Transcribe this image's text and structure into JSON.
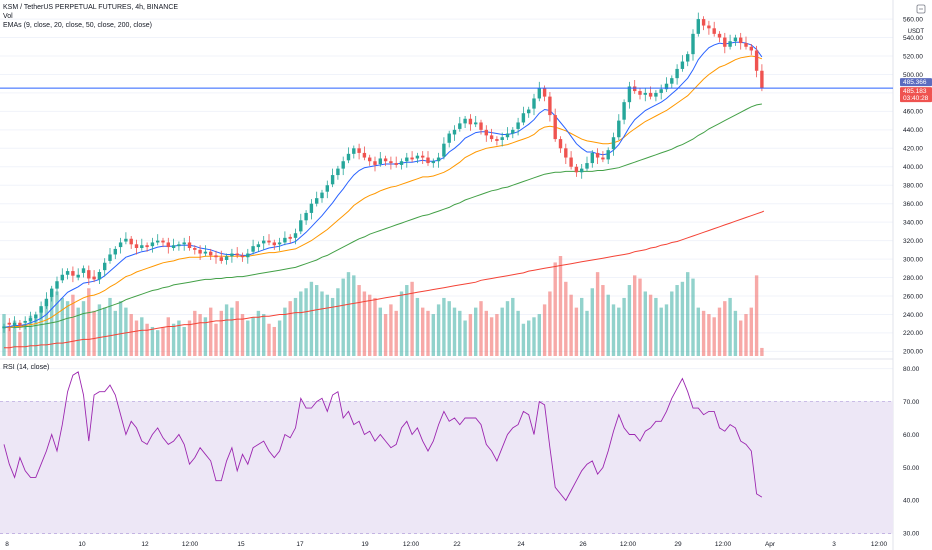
{
  "header": {
    "title": "KSM / TetherUS PERPETUAL FUTURES, 4h, BINANCE",
    "volume_label": "Vol",
    "ema_label": "EMAs (9, close, 20, close, 50, close, 200, close)",
    "rsi_label": "RSI (14, close)",
    "currency": "USDT"
  },
  "colors": {
    "up": "#26a69a",
    "down": "#ef5350",
    "ema9": "#2962ff",
    "ema20": "#ff9800",
    "ema50": "#43a047",
    "ema200": "#f44336",
    "hline": "#2962ff",
    "rsi_line": "#9c27b0",
    "rsi_band": "#ede7f6",
    "price_tag_blue": "#5b6bbf",
    "price_tag_red": "#ef5350"
  },
  "chart_data": [
    {
      "type": "candlestick",
      "title": "KSM / TetherUS PERPETUAL FUTURES, 4h, BINANCE",
      "y_ticks": [
        200,
        220,
        240,
        260,
        280,
        300,
        320,
        340,
        360,
        380,
        400,
        420,
        440,
        460,
        480,
        500,
        520,
        540,
        560
      ],
      "y_tick_labels": [
        "200.00",
        "220.00",
        "240.00",
        "260.00",
        "280.00",
        "300.00",
        "320.00",
        "340.00",
        "360.00",
        "380.00",
        "400.00",
        "420.00",
        "440.00",
        "460.00",
        "480.00",
        "500.00",
        "520.00",
        "540.00",
        "560.00"
      ],
      "x_labels": [
        "8",
        "10",
        "12",
        "12:00",
        "15",
        "17",
        "19",
        "12:00",
        "22",
        "24",
        "26",
        "12:00",
        "29",
        "12:00",
        "Apr",
        "3",
        "12:00"
      ],
      "ylim": [
        195,
        572
      ],
      "horizontal_line": 485.18,
      "price_tags": [
        "485.366",
        "485.183",
        "03:40:28"
      ],
      "close": [
        227,
        229,
        231,
        228,
        233,
        236,
        240,
        249,
        257,
        268,
        276,
        283,
        287,
        282,
        283,
        290,
        279,
        278,
        286,
        296,
        305,
        311,
        318,
        322,
        316,
        312,
        315,
        313,
        318,
        320,
        318,
        313,
        315,
        316,
        318,
        312,
        310,
        306,
        308,
        304,
        302,
        298,
        303,
        306,
        304,
        302,
        306,
        314,
        316,
        320,
        318,
        315,
        318,
        323,
        322,
        328,
        342,
        350,
        360,
        366,
        372,
        380,
        391,
        398,
        406,
        414,
        420,
        415,
        410,
        406,
        402,
        409,
        406,
        404,
        402,
        406,
        410,
        408,
        412,
        410,
        404,
        406,
        410,
        425,
        436,
        440,
        447,
        452,
        446,
        448,
        440,
        434,
        430,
        428,
        432,
        436,
        440,
        448,
        458,
        462,
        474,
        485,
        476,
        456,
        430,
        420,
        410,
        400,
        394,
        398,
        404,
        415,
        410,
        408,
        418,
        432,
        450,
        470,
        487,
        482,
        478,
        480,
        476,
        480,
        484,
        490,
        496,
        506,
        514,
        522,
        544,
        560,
        553,
        550,
        544,
        540,
        530,
        536,
        540,
        534,
        530,
        526,
        504,
        485
      ],
      "open_delta": [
        -2,
        2,
        -3,
        3,
        -2,
        -3,
        -4,
        -7,
        -8,
        -9,
        -8,
        -6,
        -4,
        5,
        -3,
        -5,
        9,
        3,
        -8,
        -8,
        -7,
        -6,
        -5,
        -3,
        6,
        4,
        -3,
        2,
        -4,
        -2,
        2,
        5,
        -3,
        -2,
        -2,
        6,
        2,
        4,
        -2,
        4,
        2,
        4,
        -4,
        -3,
        2,
        2,
        -4,
        -6,
        -3,
        -3,
        2,
        3,
        -2,
        -5,
        2,
        -5,
        -12,
        -8,
        -10,
        -6,
        -6,
        -7,
        -10,
        -7,
        -8,
        -7,
        -6,
        5,
        5,
        4,
        4,
        -6,
        3,
        2,
        2,
        -4,
        -4,
        2,
        -3,
        2,
        6,
        -2,
        -4,
        -14,
        -10,
        -5,
        -6,
        -5,
        6,
        -2,
        8,
        6,
        4,
        2,
        -3,
        -4,
        -4,
        -7,
        -10,
        -4,
        -11,
        -11,
        9,
        20,
        26,
        10,
        10,
        10,
        6,
        -4,
        -6,
        -11,
        5,
        2,
        -10,
        -13,
        -18,
        -19,
        -17,
        5,
        4,
        -2,
        4,
        -4,
        -4,
        -6,
        -6,
        -10,
        -8,
        -8,
        -22,
        -16,
        7,
        3,
        6,
        4,
        10,
        -6,
        -4,
        6,
        4,
        4,
        22,
        19
      ],
      "volume": [
        26,
        18,
        22,
        15,
        20,
        25,
        24,
        30,
        34,
        38,
        40,
        36,
        34,
        38,
        30,
        34,
        42,
        28,
        32,
        30,
        36,
        28,
        34,
        30,
        26,
        22,
        24,
        20,
        18,
        16,
        18,
        24,
        20,
        22,
        18,
        22,
        28,
        26,
        24,
        30,
        20,
        28,
        32,
        30,
        34,
        26,
        22,
        24,
        28,
        26,
        20,
        18,
        22,
        30,
        34,
        36,
        40,
        42,
        46,
        44,
        40,
        38,
        36,
        42,
        48,
        52,
        50,
        44,
        40,
        38,
        36,
        30,
        26,
        32,
        28,
        40,
        44,
        46,
        36,
        30,
        28,
        26,
        32,
        36,
        34,
        30,
        28,
        22,
        26,
        30,
        34,
        28,
        24,
        26,
        30,
        34,
        36,
        28,
        20,
        22,
        24,
        26,
        32,
        40,
        58,
        62,
        46,
        38,
        30,
        36,
        28,
        42,
        52,
        44,
        38,
        32,
        30,
        36,
        44,
        50,
        48,
        40,
        38,
        36,
        30,
        32,
        40,
        44,
        46,
        52,
        48,
        30,
        28,
        26,
        24,
        30,
        34,
        36,
        28,
        22,
        26,
        30,
        50,
        5
      ],
      "ema9": [
        226,
        227,
        228,
        228,
        229,
        231,
        233,
        236,
        240,
        246,
        252,
        258,
        264,
        267,
        270,
        274,
        275,
        276,
        278,
        282,
        287,
        292,
        297,
        302,
        304,
        306,
        308,
        309,
        311,
        313,
        314,
        314,
        314,
        315,
        315,
        315,
        314,
        312,
        311,
        310,
        308,
        306,
        305,
        305,
        305,
        304,
        304,
        306,
        308,
        310,
        312,
        313,
        314,
        316,
        317,
        319,
        324,
        329,
        335,
        341,
        347,
        354,
        361,
        369,
        376,
        384,
        391,
        396,
        399,
        400,
        401,
        402,
        403,
        403,
        403,
        404,
        405,
        405,
        406,
        407,
        406,
        406,
        407,
        410,
        416,
        420,
        425,
        431,
        434,
        437,
        438,
        438,
        437,
        436,
        435,
        435,
        436,
        438,
        442,
        446,
        451,
        458,
        462,
        461,
        455,
        448,
        441,
        433,
        425,
        420,
        416,
        416,
        414,
        413,
        414,
        418,
        424,
        433,
        443,
        451,
        456,
        461,
        464,
        467,
        470,
        474,
        479,
        484,
        490,
        496,
        505,
        516,
        523,
        529,
        532,
        534,
        533,
        534,
        535,
        535,
        534,
        532,
        527,
        519
      ],
      "ema20": [
        226,
        226,
        227,
        227,
        228,
        229,
        230,
        232,
        234,
        237,
        241,
        245,
        249,
        252,
        255,
        258,
        260,
        261,
        263,
        266,
        270,
        273,
        277,
        281,
        283,
        286,
        288,
        290,
        292,
        294,
        296,
        297,
        298,
        300,
        301,
        302,
        302,
        302,
        303,
        303,
        303,
        303,
        303,
        303,
        303,
        303,
        303,
        304,
        305,
        306,
        307,
        307,
        308,
        309,
        310,
        311,
        314,
        317,
        320,
        324,
        328,
        332,
        337,
        342,
        347,
        352,
        358,
        362,
        366,
        369,
        371,
        374,
        376,
        378,
        379,
        381,
        383,
        385,
        387,
        389,
        389,
        390,
        392,
        394,
        397,
        401,
        405,
        410,
        413,
        416,
        418,
        420,
        421,
        422,
        423,
        424,
        426,
        428,
        430,
        432,
        435,
        440,
        443,
        444,
        443,
        441,
        439,
        436,
        433,
        430,
        428,
        427,
        426,
        425,
        425,
        426,
        428,
        432,
        437,
        441,
        445,
        449,
        452,
        455,
        458,
        461,
        465,
        469,
        473,
        477,
        483,
        489,
        495,
        500,
        504,
        508,
        510,
        513,
        516,
        518,
        519,
        520,
        519,
        517
      ],
      "ema50": [
        226,
        226,
        226,
        226,
        227,
        227,
        228,
        229,
        230,
        231,
        232,
        234,
        236,
        237,
        239,
        241,
        242,
        243,
        245,
        247,
        249,
        251,
        253,
        256,
        258,
        260,
        262,
        264,
        266,
        267,
        269,
        270,
        272,
        273,
        274,
        275,
        276,
        277,
        278,
        278,
        279,
        279,
        280,
        280,
        281,
        281,
        282,
        283,
        284,
        285,
        286,
        287,
        288,
        289,
        290,
        291,
        293,
        295,
        297,
        299,
        302,
        304,
        307,
        310,
        313,
        316,
        319,
        322,
        324,
        327,
        329,
        331,
        333,
        335,
        337,
        339,
        341,
        343,
        345,
        347,
        348,
        350,
        352,
        354,
        356,
        359,
        361,
        364,
        366,
        368,
        370,
        372,
        374,
        375,
        377,
        378,
        380,
        382,
        384,
        386,
        388,
        390,
        392,
        393,
        394,
        394,
        395,
        395,
        395,
        395,
        395,
        395,
        396,
        396,
        397,
        398,
        399,
        401,
        403,
        405,
        407,
        409,
        411,
        413,
        415,
        417,
        419,
        422,
        424,
        427,
        430,
        434,
        437,
        441,
        444,
        447,
        450,
        453,
        456,
        459,
        462,
        465,
        467,
        468
      ],
      "ema200": [
        204,
        204,
        205,
        205,
        205,
        206,
        206,
        207,
        207,
        208,
        209,
        209,
        210,
        211,
        212,
        213,
        213,
        214,
        215,
        216,
        217,
        218,
        219,
        220,
        221,
        222,
        223,
        223,
        224,
        225,
        226,
        227,
        227,
        228,
        229,
        229,
        230,
        231,
        231,
        232,
        233,
        233,
        234,
        234,
        235,
        235,
        236,
        237,
        237,
        238,
        238,
        239,
        240,
        240,
        241,
        242,
        242,
        243,
        244,
        245,
        246,
        247,
        248,
        249,
        250,
        251,
        252,
        253,
        254,
        255,
        256,
        257,
        258,
        259,
        260,
        261,
        262,
        263,
        264,
        265,
        266,
        267,
        268,
        269,
        270,
        271,
        272,
        273,
        274,
        275,
        277,
        278,
        279,
        280,
        281,
        282,
        283,
        284,
        285,
        287,
        288,
        289,
        290,
        291,
        292,
        293,
        294,
        295,
        296,
        297,
        298,
        299,
        300,
        301,
        302,
        303,
        304,
        305,
        306,
        308,
        309,
        310,
        312,
        313,
        315,
        316,
        318,
        319,
        321,
        323,
        325,
        327,
        329,
        331,
        333,
        335,
        337,
        339,
        341,
        343,
        345,
        347,
        349,
        351
      ]
    },
    {
      "type": "line",
      "title": "RSI (14, close)",
      "y_ticks": [
        30,
        40,
        50,
        60,
        70,
        80
      ],
      "y_tick_labels": [
        "30.00",
        "40.00",
        "50.00",
        "60.00",
        "70.00",
        "80.00"
      ],
      "ylim": [
        28,
        82
      ],
      "band": [
        30,
        70
      ],
      "values": [
        57,
        51,
        47,
        53,
        49,
        47,
        47,
        51,
        55,
        60,
        55,
        63,
        73,
        78,
        79,
        72,
        58,
        72,
        73,
        73,
        75,
        72,
        66,
        60,
        64,
        62,
        58,
        57,
        60,
        62,
        59,
        57,
        58,
        60,
        57,
        51,
        53,
        56,
        54,
        52,
        46,
        46,
        52,
        56,
        49,
        54,
        51,
        56,
        57,
        58,
        55,
        53,
        55,
        60,
        59,
        62,
        71,
        68,
        68,
        70,
        71,
        67,
        72,
        73,
        65,
        67,
        63,
        64,
        60,
        61,
        58,
        60,
        58,
        56,
        57,
        62,
        64,
        60,
        62,
        58,
        55,
        58,
        63,
        67,
        64,
        65,
        63,
        65,
        65,
        65,
        63,
        57,
        55,
        52,
        56,
        60,
        62,
        63,
        67,
        66,
        60,
        70,
        69,
        56,
        44,
        42,
        40,
        43,
        46,
        49,
        51,
        52,
        48,
        50,
        55,
        61,
        66,
        62,
        60,
        60,
        58,
        61,
        62,
        64,
        64,
        67,
        71,
        74,
        77,
        73,
        68,
        68,
        66,
        67,
        67,
        62,
        61,
        63,
        62,
        58,
        57,
        55,
        42,
        41
      ]
    }
  ]
}
